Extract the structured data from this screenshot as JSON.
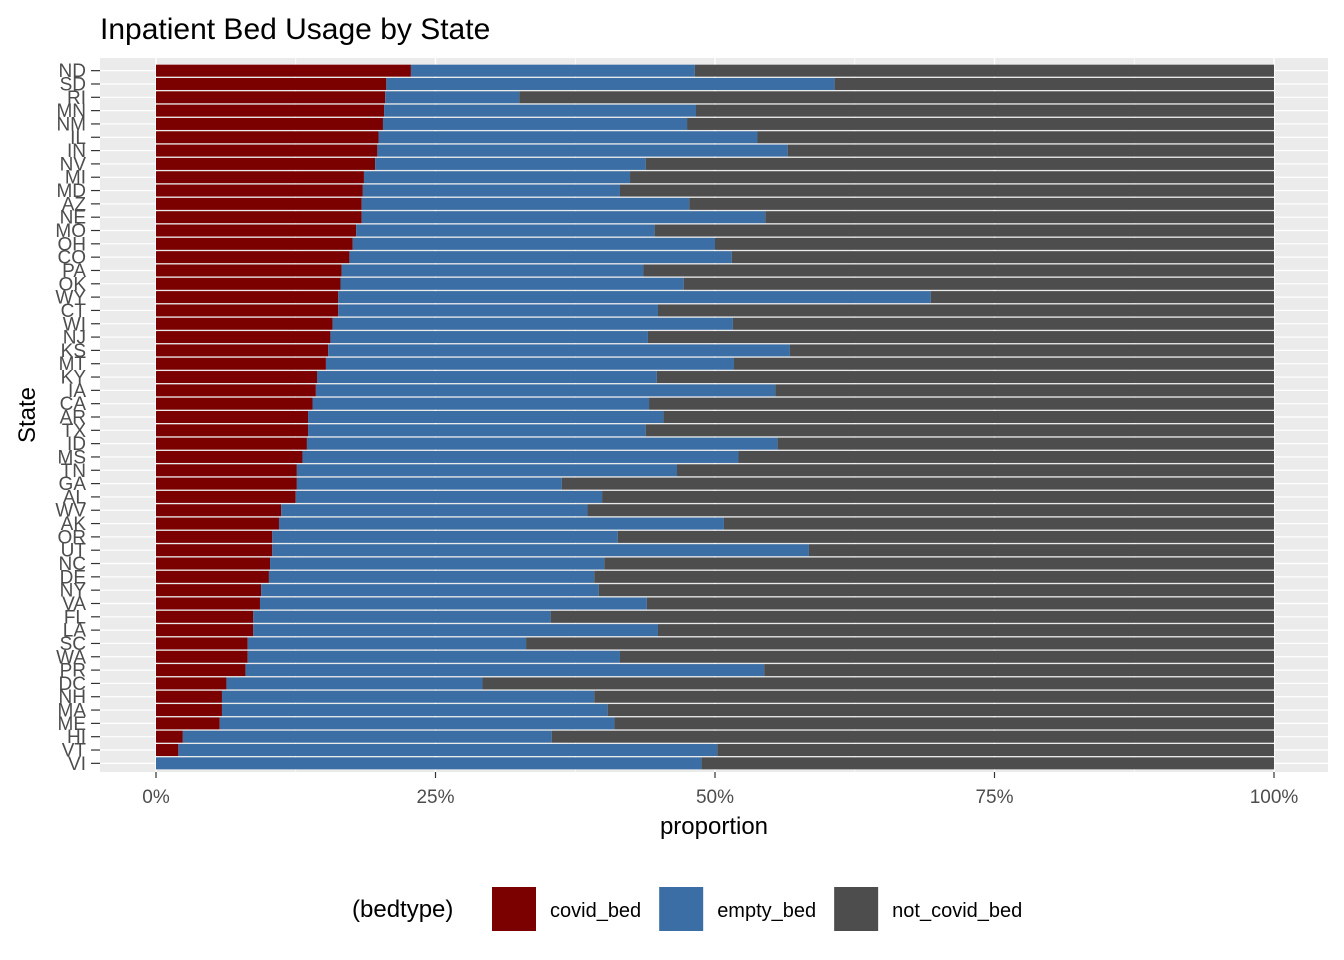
{
  "chart_data": {
    "type": "bar",
    "orientation": "horizontal",
    "stacked": true,
    "normalized": true,
    "title": "Inpatient Bed Usage by State",
    "xlabel": "proportion",
    "ylabel": "State",
    "xlim": [
      0,
      1
    ],
    "x_ticks": [
      {
        "value": 0,
        "label": "0%"
      },
      {
        "value": 0.25,
        "label": "25%"
      },
      {
        "value": 0.5,
        "label": "50%"
      },
      {
        "value": 0.75,
        "label": "75%"
      },
      {
        "value": 1,
        "label": "100%"
      }
    ],
    "grid": true,
    "legend": {
      "title": "(bedtype)",
      "position": "bottom"
    },
    "categories": [
      "ND",
      "SD",
      "RI",
      "MN",
      "NM",
      "IL",
      "IN",
      "NV",
      "MI",
      "MD",
      "AZ",
      "NE",
      "MO",
      "OH",
      "CO",
      "PA",
      "OK",
      "WY",
      "CT",
      "WI",
      "NJ",
      "KS",
      "MT",
      "KY",
      "IA",
      "CA",
      "AR",
      "TX",
      "ID",
      "MS",
      "TN",
      "GA",
      "AL",
      "WV",
      "AK",
      "OR",
      "UT",
      "NC",
      "DE",
      "NY",
      "VA",
      "FL",
      "LA",
      "SC",
      "WA",
      "PR",
      "DC",
      "NH",
      "MA",
      "ME",
      "HI",
      "VT",
      "VI"
    ],
    "series": [
      {
        "name": "covid_bed",
        "color": "#7b0000",
        "values": [
          0.228,
          0.206,
          0.205,
          0.204,
          0.203,
          0.199,
          0.198,
          0.196,
          0.186,
          0.185,
          0.184,
          0.184,
          0.179,
          0.176,
          0.173,
          0.166,
          0.165,
          0.163,
          0.163,
          0.158,
          0.156,
          0.154,
          0.152,
          0.144,
          0.143,
          0.14,
          0.136,
          0.136,
          0.135,
          0.131,
          0.126,
          0.126,
          0.125,
          0.112,
          0.11,
          0.104,
          0.104,
          0.102,
          0.101,
          0.094,
          0.093,
          0.087,
          0.087,
          0.082,
          0.082,
          0.08,
          0.063,
          0.059,
          0.059,
          0.057,
          0.024,
          0.02,
          0.0
        ]
      },
      {
        "name": "empty_bed",
        "color": "#3a6ea5",
        "values": [
          0.254,
          0.401,
          0.12,
          0.279,
          0.272,
          0.339,
          0.367,
          0.242,
          0.238,
          0.23,
          0.293,
          0.361,
          0.267,
          0.324,
          0.342,
          0.27,
          0.307,
          0.53,
          0.286,
          0.358,
          0.284,
          0.413,
          0.365,
          0.304,
          0.411,
          0.301,
          0.318,
          0.302,
          0.421,
          0.39,
          0.34,
          0.237,
          0.274,
          0.274,
          0.398,
          0.309,
          0.48,
          0.299,
          0.291,
          0.302,
          0.346,
          0.266,
          0.362,
          0.249,
          0.333,
          0.464,
          0.229,
          0.333,
          0.345,
          0.353,
          0.33,
          0.482,
          0.488
        ]
      },
      {
        "name": "not_covid_bed",
        "color": "#4d4d4d",
        "values": [
          0.518,
          0.393,
          0.675,
          0.517,
          0.525,
          0.462,
          0.435,
          0.562,
          0.576,
          0.585,
          0.523,
          0.455,
          0.554,
          0.5,
          0.485,
          0.564,
          0.528,
          0.307,
          0.551,
          0.484,
          0.56,
          0.433,
          0.483,
          0.552,
          0.446,
          0.559,
          0.546,
          0.562,
          0.444,
          0.479,
          0.534,
          0.637,
          0.601,
          0.614,
          0.492,
          0.587,
          0.416,
          0.599,
          0.608,
          0.604,
          0.561,
          0.647,
          0.551,
          0.669,
          0.585,
          0.456,
          0.708,
          0.608,
          0.596,
          0.59,
          0.646,
          0.498,
          0.512
        ]
      }
    ]
  }
}
